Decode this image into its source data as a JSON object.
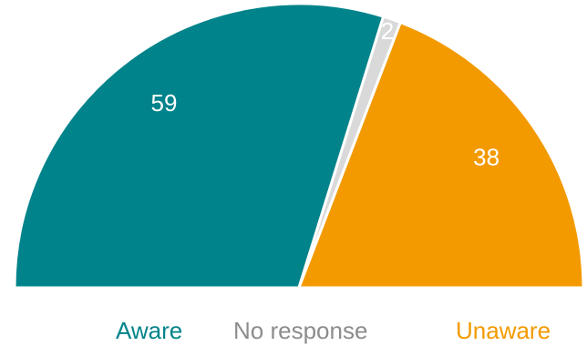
{
  "chart_data": {
    "type": "pie",
    "variant": "semicircle",
    "categories": [
      "Aware",
      "No response",
      "Unaware"
    ],
    "values": [
      59,
      2,
      38
    ],
    "colors": [
      "#00838a",
      "#d9d9d9",
      "#f39a00"
    ],
    "label_color": "#ffffff",
    "legend_position": "bottom",
    "title": "",
    "legend": [
      {
        "label": "Aware",
        "color": "#00838a"
      },
      {
        "label": "No response",
        "color": "#8c8c8c"
      },
      {
        "label": "Unaware",
        "color": "#f39a00"
      }
    ]
  }
}
